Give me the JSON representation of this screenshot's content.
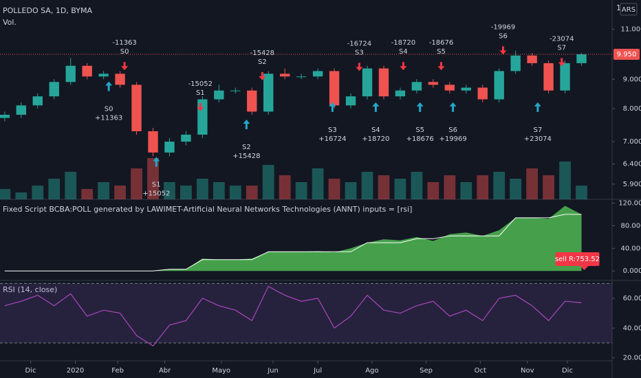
{
  "header": {
    "symbol": "POLLEDO SA, 1D, BYMA",
    "volume_label": "Vol.",
    "currency": "ARS",
    "scale_menu": "1"
  },
  "chart_data": [
    {
      "type": "candlestick",
      "log_scale": true,
      "up_color": "#26a69a",
      "down_color": "#ef5350",
      "x": [
        2,
        9,
        16,
        23,
        30,
        37,
        44,
        51,
        58,
        65,
        72,
        79,
        86,
        93,
        100,
        107,
        114,
        121,
        128,
        135,
        142,
        149,
        156,
        163,
        170,
        177,
        184,
        191,
        198,
        205,
        212,
        219,
        226,
        233,
        240,
        247
      ],
      "open": [
        7.7,
        7.8,
        8.1,
        8.4,
        8.9,
        9.5,
        9.1,
        9.2,
        8.8,
        7.3,
        6.7,
        7.0,
        7.2,
        8.3,
        8.6,
        8.6,
        7.9,
        9.2,
        9.1,
        9.1,
        9.3,
        8.1,
        8.4,
        9.4,
        8.4,
        8.6,
        8.9,
        8.8,
        8.6,
        8.7,
        8.3,
        9.3,
        9.9,
        9.6,
        8.6,
        9.6
      ],
      "high": [
        7.9,
        8.2,
        8.5,
        9.0,
        9.8,
        9.6,
        9.3,
        9.3,
        8.9,
        7.4,
        7.1,
        7.3,
        8.4,
        8.8,
        8.7,
        8.7,
        9.3,
        9.4,
        9.2,
        9.4,
        9.4,
        8.5,
        9.5,
        9.5,
        8.7,
        9.0,
        9.0,
        8.9,
        8.8,
        8.8,
        9.4,
        10.1,
        10.0,
        9.7,
        9.7,
        10.0
      ],
      "low": [
        7.6,
        7.7,
        8.0,
        8.3,
        8.8,
        9.0,
        9.0,
        8.7,
        7.2,
        6.6,
        6.6,
        6.9,
        7.1,
        8.2,
        8.5,
        7.8,
        7.8,
        9.0,
        9.0,
        9.0,
        8.0,
        8.0,
        8.3,
        8.3,
        8.3,
        8.5,
        8.7,
        8.5,
        8.5,
        8.2,
        8.2,
        9.2,
        9.5,
        8.5,
        8.5,
        9.5
      ],
      "close": [
        7.8,
        8.1,
        8.4,
        8.9,
        9.5,
        9.1,
        9.2,
        8.8,
        7.3,
        6.7,
        7.0,
        7.2,
        8.3,
        8.6,
        8.6,
        7.9,
        9.2,
        9.1,
        9.1,
        9.3,
        8.1,
        8.4,
        9.4,
        8.4,
        8.6,
        8.9,
        8.8,
        8.6,
        8.7,
        8.3,
        9.3,
        9.9,
        9.6,
        8.6,
        9.6,
        9.95
      ],
      "volume": [
        3,
        2,
        4,
        6,
        8,
        3,
        5,
        4,
        9,
        12,
        5,
        4,
        6,
        5,
        4,
        4,
        10,
        7,
        5,
        9,
        6,
        5,
        8,
        7,
        6,
        8,
        5,
        7,
        5,
        7,
        8,
        6,
        9,
        7,
        11,
        4
      ],
      "xlim": [
        0,
        260
      ],
      "xticks": [
        {
          "value": 13,
          "label": "Dic"
        },
        {
          "value": 32,
          "label": "2020"
        },
        {
          "value": 50,
          "label": "Feb"
        },
        {
          "value": 70,
          "label": "Abr"
        },
        {
          "value": 94,
          "label": "Mayo"
        },
        {
          "value": 116,
          "label": "Jun"
        },
        {
          "value": 135,
          "label": "Jul"
        },
        {
          "value": 158,
          "label": "Ago"
        },
        {
          "value": 181,
          "label": "Sep"
        },
        {
          "value": 204,
          "label": "Oct"
        },
        {
          "value": 224,
          "label": "Nov"
        },
        {
          "value": 241,
          "label": "Dic"
        }
      ],
      "ylim": [
        5.55,
        12.38
      ],
      "yticks": [
        {
          "value": 11,
          "label": "11.000"
        },
        {
          "value": 9,
          "label": "9.000"
        },
        {
          "value": 8,
          "label": "8.000"
        },
        {
          "value": 7,
          "label": "7.000"
        },
        {
          "value": 6.4,
          "label": "6.400"
        },
        {
          "value": 5.9,
          "label": "5.900"
        }
      ],
      "last_price": {
        "value": 9.95,
        "label": "9.950"
      },
      "signals": [
        {
          "side": "sell",
          "x": 52.9,
          "price": 9.33,
          "labels": [
            "-11363",
            "S0"
          ]
        },
        {
          "side": "sell",
          "x": 85.1,
          "price": 7.91,
          "labels": [
            "-15052",
            "S1"
          ]
        },
        {
          "side": "sell",
          "x": 111.4,
          "price": 8.96,
          "labels": [
            "-15428",
            "S2"
          ]
        },
        {
          "side": "sell",
          "x": 152.6,
          "price": 9.3,
          "labels": [
            "-16724",
            "S3"
          ]
        },
        {
          "side": "sell",
          "x": 171.3,
          "price": 9.33,
          "labels": [
            "-18720",
            "S4"
          ]
        },
        {
          "side": "sell",
          "x": 187.4,
          "price": 9.33,
          "labels": [
            "-18676",
            "S5"
          ]
        },
        {
          "side": "sell",
          "x": 213.7,
          "price": 9.94,
          "labels": [
            "-19969",
            "S6"
          ]
        },
        {
          "side": "sell",
          "x": 238.6,
          "price": 9.48,
          "labels": [
            "-23074",
            "S7"
          ]
        },
        {
          "side": "buy",
          "x": 46.2,
          "price": 8.92,
          "labels": [
            "S0",
            "+11363"
          ]
        },
        {
          "side": "buy",
          "x": 66.4,
          "price": 6.58,
          "labels": [
            "S1",
            "+15052"
          ]
        },
        {
          "side": "buy",
          "x": 104.7,
          "price": 7.65,
          "labels": [
            "S2",
            "+15428"
          ]
        },
        {
          "side": "buy",
          "x": 141.2,
          "price": 8.2,
          "labels": [
            "S3",
            "+16724"
          ]
        },
        {
          "side": "buy",
          "x": 159.6,
          "price": 8.2,
          "labels": [
            "S4",
            "+18720"
          ]
        },
        {
          "side": "buy",
          "x": 178.4,
          "price": 8.2,
          "labels": [
            "S5",
            "+18676"
          ]
        },
        {
          "side": "buy",
          "x": 192.4,
          "price": 8.2,
          "labels": [
            "S6",
            "+19969"
          ]
        },
        {
          "side": "buy",
          "x": 228.4,
          "price": 8.2,
          "labels": [
            "S7",
            "+23074"
          ]
        }
      ]
    },
    {
      "type": "area",
      "title": "Fixed Script BCBA:POLL generated by LAWIMET-Artificial Neural Networks Technologies (ANNT) inputs = [rsi]",
      "x": [
        2,
        9,
        16,
        23,
        30,
        37,
        44,
        51,
        58,
        65,
        72,
        79,
        86,
        93,
        100,
        107,
        114,
        121,
        128,
        135,
        142,
        149,
        156,
        163,
        170,
        177,
        184,
        191,
        198,
        205,
        212,
        219,
        226,
        233,
        240,
        247
      ],
      "series": [
        {
          "color": "#4caf50",
          "values": [
            0,
            0,
            0,
            0,
            0,
            0,
            0,
            0,
            0,
            0,
            3000,
            3000,
            22000,
            20000,
            20000,
            22000,
            34000,
            34000,
            34000,
            35000,
            33000,
            40000,
            50000,
            56000,
            54000,
            60000,
            53000,
            65000,
            68000,
            62000,
            72000,
            94000,
            94000,
            92000,
            115000,
            100000
          ]
        },
        {
          "color": "#ffffff",
          "values": [
            0,
            0,
            0,
            0,
            0,
            0,
            0,
            0,
            0,
            0,
            3000,
            3000,
            20000,
            20000,
            20000,
            20000,
            34000,
            34000,
            34000,
            34000,
            34000,
            34000,
            50000,
            50000,
            50000,
            57000,
            57000,
            62000,
            62000,
            62000,
            62000,
            94000,
            94000,
            94000,
            100000,
            100000
          ]
        }
      ],
      "ylim": [
        -16700,
        126600
      ],
      "yticks": [
        {
          "value": 120000,
          "label": "120.000"
        },
        {
          "value": 80000,
          "label": "80.000"
        },
        {
          "value": 40000,
          "label": "40.000"
        },
        {
          "value": 0,
          "label": "0.000"
        }
      ],
      "annotation": "sell R:753.52"
    },
    {
      "type": "line",
      "title": "RSI (14, close)",
      "color": "#ab47bc",
      "x": [
        2,
        9,
        16,
        23,
        30,
        37,
        44,
        51,
        58,
        65,
        72,
        79,
        86,
        93,
        100,
        107,
        114,
        121,
        128,
        135,
        142,
        149,
        156,
        163,
        170,
        177,
        184,
        191,
        198,
        205,
        212,
        219,
        226,
        233,
        240,
        247
      ],
      "values": [
        55,
        58,
        62,
        55,
        63,
        48,
        52,
        50,
        35,
        28,
        42,
        45,
        60,
        55,
        52,
        45,
        68,
        62,
        58,
        60,
        40,
        48,
        62,
        52,
        50,
        55,
        58,
        48,
        52,
        45,
        60,
        62,
        55,
        45,
        58,
        57
      ],
      "band": [
        30,
        70
      ],
      "ylim": [
        18,
        72
      ],
      "yticks": [
        {
          "value": 60,
          "label": "60.00"
        },
        {
          "value": 40,
          "label": "40.00"
        },
        {
          "value": 20,
          "label": "20.00"
        }
      ]
    }
  ]
}
